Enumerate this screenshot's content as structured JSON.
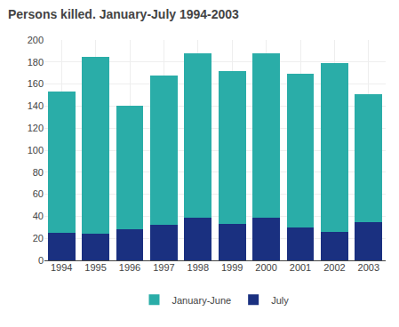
{
  "chart_data": {
    "type": "bar",
    "title": "Persons killed. January-July 1994-2003",
    "categories": [
      "1994",
      "1995",
      "1996",
      "1997",
      "1998",
      "1999",
      "2000",
      "2001",
      "2002",
      "2003"
    ],
    "series": [
      {
        "name": "July",
        "color": "#1a3080",
        "values": [
          25,
          24,
          28,
          32,
          39,
          33,
          39,
          30,
          26,
          35
        ]
      },
      {
        "name": "January-June",
        "color": "#2aada8",
        "values": [
          128,
          161,
          112,
          136,
          149,
          139,
          149,
          139,
          153,
          116
        ]
      }
    ],
    "stacked": true,
    "ylim": [
      0,
      200
    ],
    "yticks": [
      0,
      20,
      40,
      60,
      80,
      100,
      120,
      140,
      160,
      180,
      200
    ],
    "grid": true,
    "legend": "bottom"
  }
}
